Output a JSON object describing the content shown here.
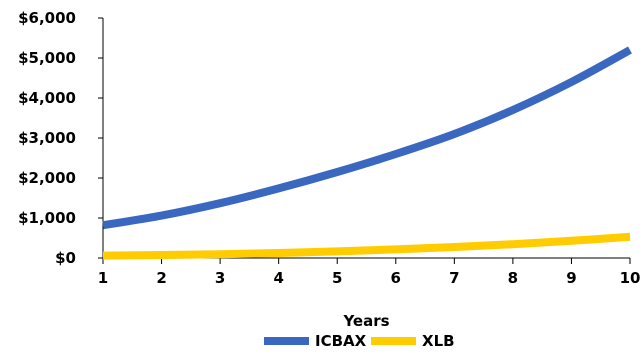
{
  "chart_data": {
    "type": "line",
    "title": "",
    "xlabel": "Years",
    "ylabel": "",
    "x": [
      1,
      2,
      3,
      4,
      5,
      6,
      7,
      8,
      9,
      10
    ],
    "xlim": [
      1,
      10
    ],
    "ylim": [
      0,
      6000
    ],
    "y_ticks": [
      0,
      1000,
      2000,
      3000,
      4000,
      5000,
      6000
    ],
    "y_tick_labels": [
      "$0",
      "$1,000",
      "$2,000",
      "$3,000",
      "$4,000",
      "$5,000",
      "$6,000"
    ],
    "x_tick_labels": [
      "1",
      "2",
      "3",
      "4",
      "5",
      "6",
      "7",
      "8",
      "9",
      "10"
    ],
    "grid": false,
    "legend_position": "bottom",
    "series": [
      {
        "name": "ICBAX",
        "color": "#3A67BF",
        "values": [
          820,
          1060,
          1370,
          1740,
          2150,
          2600,
          3100,
          3700,
          4400,
          5200
        ]
      },
      {
        "name": "XLB",
        "color": "#FFCC00",
        "values": [
          60,
          75,
          95,
          125,
          165,
          215,
          275,
          345,
          430,
          530
        ]
      }
    ]
  }
}
